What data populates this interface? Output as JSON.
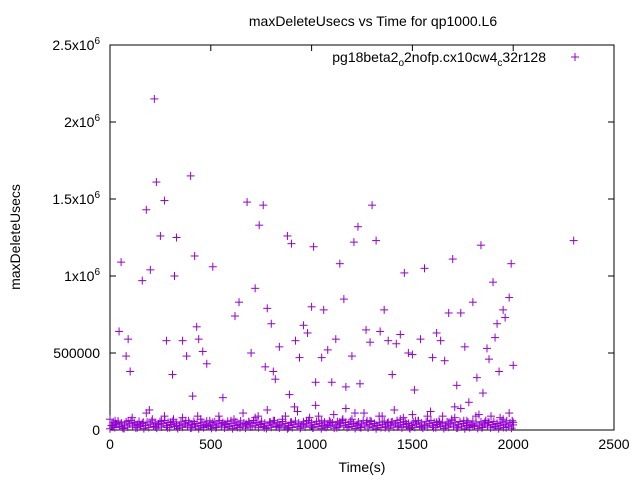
{
  "chart_data": {
    "type": "scatter",
    "title": "maxDeleteUsecs vs Time for qp1000.L6",
    "xlabel": "Time(s)",
    "ylabel": "maxDeleteUsecs",
    "xlim": [
      0,
      2500
    ],
    "ylim": [
      0,
      2500000
    ],
    "grid": false,
    "legend": "top-right",
    "marker_color": "#9400d3",
    "marker": "+",
    "x_ticks": [
      {
        "value": 0,
        "label": "0"
      },
      {
        "value": 500,
        "label": "500"
      },
      {
        "value": 1000,
        "label": "1000"
      },
      {
        "value": 1500,
        "label": "1500"
      },
      {
        "value": 2000,
        "label": "2000"
      },
      {
        "value": 2500,
        "label": "2500"
      }
    ],
    "y_ticks": [
      {
        "value": 0,
        "mantissa": "0",
        "exp": ""
      },
      {
        "value": 500000,
        "mantissa": "500000",
        "exp": ""
      },
      {
        "value": 1000000,
        "mantissa": "1x10",
        "exp": "6"
      },
      {
        "value": 1500000,
        "mantissa": "1.5x10",
        "exp": "6"
      },
      {
        "value": 2000000,
        "mantissa": "2x10",
        "exp": "6"
      },
      {
        "value": 2500000,
        "mantissa": "2.5x10",
        "exp": "6"
      }
    ],
    "series": [
      {
        "name": {
          "p1": "pg18beta2",
          "s1": "o",
          "p2": "2nofp.cx10cw4",
          "s2": "c",
          "p3": "32r128"
        },
        "points": [
          [
            30,
            40000
          ],
          [
            45,
            640000
          ],
          [
            55,
            1090000
          ],
          [
            80,
            480000
          ],
          [
            90,
            590000
          ],
          [
            100,
            380000
          ],
          [
            160,
            970000
          ],
          [
            180,
            1430000
          ],
          [
            200,
            1040000
          ],
          [
            220,
            2150000
          ],
          [
            230,
            1610000
          ],
          [
            250,
            1260000
          ],
          [
            270,
            1490000
          ],
          [
            280,
            580000
          ],
          [
            310,
            360000
          ],
          [
            320,
            1000000
          ],
          [
            330,
            1250000
          ],
          [
            360,
            580000
          ],
          [
            380,
            480000
          ],
          [
            400,
            1650000
          ],
          [
            410,
            220000
          ],
          [
            420,
            1130000
          ],
          [
            430,
            670000
          ],
          [
            440,
            590000
          ],
          [
            460,
            510000
          ],
          [
            480,
            430000
          ],
          [
            510,
            1060000
          ],
          [
            560,
            210000
          ],
          [
            620,
            740000
          ],
          [
            640,
            830000
          ],
          [
            680,
            1480000
          ],
          [
            700,
            500000
          ],
          [
            720,
            920000
          ],
          [
            740,
            1330000
          ],
          [
            760,
            1460000
          ],
          [
            770,
            410000
          ],
          [
            780,
            790000
          ],
          [
            800,
            690000
          ],
          [
            810,
            380000
          ],
          [
            820,
            330000
          ],
          [
            840,
            540000
          ],
          [
            880,
            1260000
          ],
          [
            890,
            230000
          ],
          [
            900,
            1210000
          ],
          [
            920,
            580000
          ],
          [
            940,
            470000
          ],
          [
            960,
            680000
          ],
          [
            980,
            630000
          ],
          [
            1000,
            800000
          ],
          [
            1010,
            1190000
          ],
          [
            1020,
            310000
          ],
          [
            1050,
            470000
          ],
          [
            1060,
            780000
          ],
          [
            1080,
            520000
          ],
          [
            1100,
            310000
          ],
          [
            1120,
            590000
          ],
          [
            1140,
            1080000
          ],
          [
            1160,
            850000
          ],
          [
            1170,
            280000
          ],
          [
            1200,
            480000
          ],
          [
            1210,
            1220000
          ],
          [
            1230,
            1320000
          ],
          [
            1240,
            300000
          ],
          [
            1270,
            650000
          ],
          [
            1290,
            570000
          ],
          [
            1300,
            1460000
          ],
          [
            1320,
            1230000
          ],
          [
            1340,
            640000
          ],
          [
            1360,
            780000
          ],
          [
            1380,
            580000
          ],
          [
            1400,
            360000
          ],
          [
            1420,
            560000
          ],
          [
            1440,
            620000
          ],
          [
            1460,
            1020000
          ],
          [
            1480,
            500000
          ],
          [
            1500,
            490000
          ],
          [
            1510,
            260000
          ],
          [
            1540,
            590000
          ],
          [
            1560,
            1050000
          ],
          [
            1600,
            470000
          ],
          [
            1620,
            630000
          ],
          [
            1640,
            580000
          ],
          [
            1660,
            450000
          ],
          [
            1680,
            760000
          ],
          [
            1700,
            1110000
          ],
          [
            1710,
            150000
          ],
          [
            1720,
            290000
          ],
          [
            1740,
            760000
          ],
          [
            1760,
            540000
          ],
          [
            1780,
            180000
          ],
          [
            1800,
            830000
          ],
          [
            1820,
            340000
          ],
          [
            1840,
            1200000
          ],
          [
            1850,
            240000
          ],
          [
            1870,
            530000
          ],
          [
            1880,
            460000
          ],
          [
            1900,
            960000
          ],
          [
            1910,
            600000
          ],
          [
            1920,
            690000
          ],
          [
            1930,
            380000
          ],
          [
            1950,
            780000
          ],
          [
            1960,
            730000
          ],
          [
            1980,
            860000
          ],
          [
            1990,
            1080000
          ],
          [
            2000,
            420000
          ],
          [
            2300,
            1230000
          ],
          [
            0,
            70000
          ],
          [
            10,
            30000
          ],
          [
            40,
            50000
          ],
          [
            60,
            20000
          ],
          [
            90,
            60000
          ],
          [
            120,
            40000
          ],
          [
            150,
            30000
          ],
          [
            180,
            110000
          ],
          [
            210,
            70000
          ],
          [
            240,
            40000
          ],
          [
            270,
            90000
          ],
          [
            300,
            50000
          ],
          [
            330,
            30000
          ],
          [
            360,
            80000
          ],
          [
            390,
            60000
          ],
          [
            420,
            40000
          ],
          [
            450,
            70000
          ],
          [
            480,
            30000
          ],
          [
            510,
            50000
          ],
          [
            540,
            90000
          ],
          [
            570,
            40000
          ],
          [
            600,
            60000
          ],
          [
            630,
            30000
          ],
          [
            660,
            110000
          ],
          [
            690,
            50000
          ],
          [
            720,
            80000
          ],
          [
            750,
            40000
          ],
          [
            780,
            130000
          ],
          [
            810,
            60000
          ],
          [
            840,
            30000
          ],
          [
            870,
            90000
          ],
          [
            900,
            50000
          ],
          [
            930,
            120000
          ],
          [
            960,
            40000
          ],
          [
            990,
            80000
          ],
          [
            1020,
            160000
          ],
          [
            1050,
            60000
          ],
          [
            1080,
            30000
          ],
          [
            1110,
            100000
          ],
          [
            1140,
            50000
          ],
          [
            1170,
            140000
          ],
          [
            1200,
            70000
          ],
          [
            1230,
            40000
          ],
          [
            1260,
            110000
          ],
          [
            1290,
            60000
          ],
          [
            1320,
            30000
          ],
          [
            1350,
            90000
          ],
          [
            1380,
            50000
          ],
          [
            1410,
            130000
          ],
          [
            1440,
            70000
          ],
          [
            1470,
            40000
          ],
          [
            1500,
            100000
          ],
          [
            1530,
            60000
          ],
          [
            1560,
            30000
          ],
          [
            1590,
            120000
          ],
          [
            1620,
            50000
          ],
          [
            1650,
            90000
          ],
          [
            1680,
            40000
          ],
          [
            1710,
            80000
          ],
          [
            1740,
            140000
          ],
          [
            1770,
            60000
          ],
          [
            1800,
            30000
          ],
          [
            1830,
            100000
          ],
          [
            1860,
            50000
          ],
          [
            1890,
            90000
          ],
          [
            1920,
            40000
          ],
          [
            1950,
            70000
          ],
          [
            1980,
            110000
          ],
          [
            2000,
            50000
          ],
          [
            15,
            20000
          ],
          [
            25,
            60000
          ],
          [
            70,
            10000
          ],
          [
            110,
            80000
          ],
          [
            135,
            15000
          ],
          [
            165,
            50000
          ],
          [
            195,
            130000
          ],
          [
            225,
            20000
          ],
          [
            255,
            60000
          ],
          [
            285,
            15000
          ],
          [
            315,
            70000
          ],
          [
            345,
            20000
          ],
          [
            375,
            40000
          ],
          [
            405,
            15000
          ],
          [
            435,
            90000
          ],
          [
            465,
            20000
          ],
          [
            495,
            60000
          ],
          [
            525,
            15000
          ],
          [
            555,
            40000
          ],
          [
            585,
            20000
          ],
          [
            615,
            70000
          ],
          [
            645,
            15000
          ],
          [
            675,
            40000
          ],
          [
            705,
            20000
          ],
          [
            735,
            90000
          ],
          [
            765,
            15000
          ],
          [
            795,
            50000
          ],
          [
            825,
            20000
          ],
          [
            855,
            70000
          ],
          [
            885,
            15000
          ],
          [
            915,
            150000
          ],
          [
            945,
            20000
          ],
          [
            975,
            60000
          ],
          [
            1005,
            15000
          ],
          [
            1035,
            90000
          ],
          [
            1065,
            20000
          ],
          [
            1095,
            50000
          ],
          [
            1125,
            15000
          ],
          [
            1155,
            70000
          ],
          [
            1185,
            20000
          ],
          [
            1215,
            110000
          ],
          [
            1245,
            15000
          ],
          [
            1275,
            60000
          ],
          [
            1305,
            20000
          ],
          [
            1335,
            90000
          ],
          [
            1365,
            15000
          ],
          [
            1395,
            50000
          ],
          [
            1425,
            20000
          ],
          [
            1455,
            80000
          ],
          [
            1485,
            15000
          ],
          [
            1515,
            60000
          ],
          [
            1545,
            20000
          ],
          [
            1575,
            90000
          ],
          [
            1605,
            15000
          ],
          [
            1635,
            50000
          ],
          [
            1665,
            20000
          ],
          [
            1695,
            70000
          ],
          [
            1725,
            15000
          ],
          [
            1755,
            60000
          ],
          [
            1785,
            20000
          ],
          [
            1815,
            90000
          ],
          [
            1845,
            15000
          ],
          [
            1875,
            50000
          ],
          [
            1905,
            20000
          ],
          [
            1935,
            80000
          ],
          [
            1965,
            15000
          ],
          [
            1995,
            60000
          ]
        ]
      }
    ]
  }
}
